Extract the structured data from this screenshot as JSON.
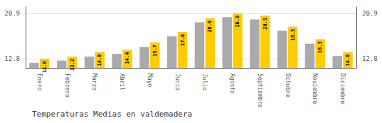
{
  "chart_data": {
    "type": "bar",
    "title": "Temperaturas Medias en valdemadera",
    "categories": [
      "Enero",
      "Febrero",
      "Marzo",
      "Abril",
      "Mayo",
      "Junio",
      "Julio",
      "Agosto",
      "Septiembre",
      "Octubre",
      "Noviembre",
      "Diciembre"
    ],
    "series": [
      {
        "color": "#AAAAAA",
        "values": [
          12.1,
          12.5,
          13.2,
          13.7,
          14.9,
          16.8,
          19.3,
          20.2,
          19.8,
          17.8,
          15.5,
          13.3
        ]
      },
      {
        "color": "#FFCC00",
        "values": [
          12.8,
          13.2,
          14.0,
          14.4,
          15.7,
          17.6,
          20.0,
          20.9,
          20.5,
          18.5,
          16.3,
          14.0
        ],
        "data_labels": true,
        "value_labels": [
          "12.8",
          "13.2",
          "14.0",
          "14.4",
          "15.7",
          "17.6",
          "20.0",
          "20.9",
          "20.5",
          "18.5",
          "16.3",
          "14.0"
        ]
      }
    ],
    "ylim": [
      11.2,
      22.0
    ],
    "yticks": [
      12.8,
      20.9
    ],
    "y2lim": [
      11.2,
      22.0
    ],
    "y2ticks": [
      12.8,
      20.9
    ],
    "grid": true
  }
}
